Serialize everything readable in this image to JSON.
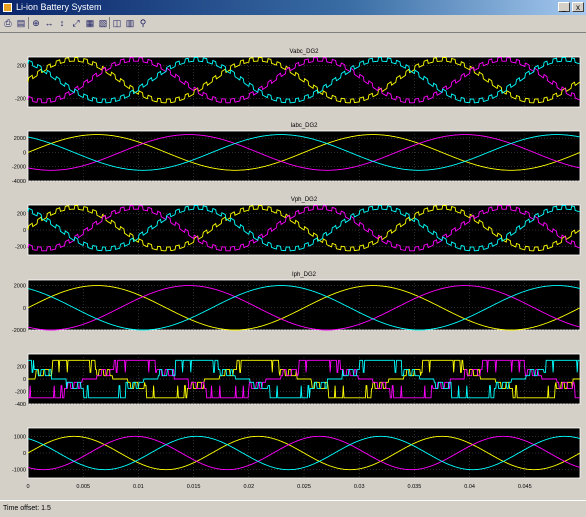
{
  "window": {
    "title": "Li-ion Battery System",
    "minimize_label": "_",
    "close_label": "x"
  },
  "toolbar": {
    "buttons": [
      {
        "name": "print-icon",
        "glyph": "⎙"
      },
      {
        "name": "parameters-icon",
        "glyph": "▤"
      },
      {
        "name": "zoom-in-icon",
        "glyph": "⊕"
      },
      {
        "name": "zoom-x-icon",
        "glyph": "↔"
      },
      {
        "name": "zoom-y-icon",
        "glyph": "↕"
      },
      {
        "name": "autoscale-icon",
        "glyph": "⤢"
      },
      {
        "name": "save-axes-icon",
        "glyph": "▦"
      },
      {
        "name": "restore-axes-icon",
        "glyph": "▧"
      },
      {
        "name": "floating-scope-icon",
        "glyph": "◫"
      },
      {
        "name": "lock-axes-icon",
        "glyph": "▥"
      },
      {
        "name": "signal-selection-icon",
        "glyph": "⚲"
      }
    ]
  },
  "status": {
    "text": "Time offset:  1.5"
  },
  "colors": {
    "yellow": "#ffff00",
    "magenta": "#ff00ff",
    "cyan": "#00ffff",
    "plot_bg": "#000000",
    "axes": "#ffffff",
    "grid": "#5a5a5a",
    "window_bg": "#d4d0c8"
  },
  "chart_data": [
    {
      "type": "line",
      "title": "Vabc_DG2",
      "ylim": [
        -300,
        300
      ],
      "yticks": [
        -200,
        200
      ],
      "ytick_labels": [
        "-200",
        "200"
      ],
      "waveform": "pwm-sine",
      "amplitude": 250,
      "cycles": 3,
      "series": [
        {
          "color": "yellow",
          "phase_deg": 0
        },
        {
          "color": "magenta",
          "phase_deg": -120
        },
        {
          "color": "cyan",
          "phase_deg": 120
        }
      ]
    },
    {
      "type": "line",
      "title": "Iabc_DG2",
      "ylim": [
        -4000,
        3000
      ],
      "yticks": [
        -4000,
        -2000,
        0,
        2000
      ],
      "ytick_labels": [
        "-4000",
        "-2000",
        "0",
        "2000"
      ],
      "waveform": "sine",
      "amplitude": 2500,
      "cycles": 2,
      "series": [
        {
          "color": "yellow",
          "phase_deg": 0
        },
        {
          "color": "magenta",
          "phase_deg": -120
        },
        {
          "color": "cyan",
          "phase_deg": 120
        }
      ]
    },
    {
      "type": "line",
      "title": "Vph_DG2",
      "ylim": [
        -300,
        300
      ],
      "yticks": [
        -200,
        0,
        200
      ],
      "ytick_labels": [
        "-200",
        "0",
        "200"
      ],
      "waveform": "pwm-sine",
      "amplitude": 250,
      "cycles": 3,
      "series": [
        {
          "color": "yellow",
          "phase_deg": 0
        },
        {
          "color": "magenta",
          "phase_deg": -120
        },
        {
          "color": "cyan",
          "phase_deg": 120
        }
      ]
    },
    {
      "type": "line",
      "title": "Iph_DG2",
      "ylim": [
        -2000,
        2500
      ],
      "yticks": [
        -2000,
        0,
        2000
      ],
      "ytick_labels": [
        "-2000",
        "0",
        "2000"
      ],
      "waveform": "sine",
      "amplitude": 2000,
      "cycles": 2,
      "series": [
        {
          "color": "yellow",
          "phase_deg": 0
        },
        {
          "color": "magenta",
          "phase_deg": -120
        },
        {
          "color": "cyan",
          "phase_deg": 120
        }
      ]
    },
    {
      "type": "line",
      "title": "",
      "ylim": [
        -400,
        400
      ],
      "yticks": [
        -400,
        -200,
        0,
        200
      ],
      "ytick_labels": [
        "-400",
        "-200",
        "0",
        "200"
      ],
      "waveform": "pwm",
      "amplitude": 300,
      "cycles": 3,
      "series": [
        {
          "color": "yellow",
          "phase_deg": 0
        },
        {
          "color": "magenta",
          "phase_deg": -120
        },
        {
          "color": "cyan",
          "phase_deg": 120
        }
      ]
    },
    {
      "type": "line",
      "title": "",
      "ylim": [
        -1500,
        1500
      ],
      "yticks": [
        -1000,
        0,
        1000
      ],
      "ytick_labels": [
        "-1000",
        "0",
        "1000"
      ],
      "waveform": "sine",
      "amplitude": 1000,
      "cycles": 3,
      "series": [
        {
          "color": "yellow",
          "phase_deg": 0
        },
        {
          "color": "magenta",
          "phase_deg": -120
        },
        {
          "color": "cyan",
          "phase_deg": 120
        }
      ]
    }
  ],
  "x_axis": {
    "xlim": [
      0,
      0.05
    ],
    "ticks": [
      0,
      0.005,
      0.01,
      0.015,
      0.02,
      0.025,
      0.03,
      0.035,
      0.04,
      0.045
    ],
    "tick_labels": [
      "0",
      "0.005",
      "0.01",
      "0.015",
      "0.02",
      "0.025",
      "0.03",
      "0.035",
      "0.04",
      "0.045"
    ]
  }
}
